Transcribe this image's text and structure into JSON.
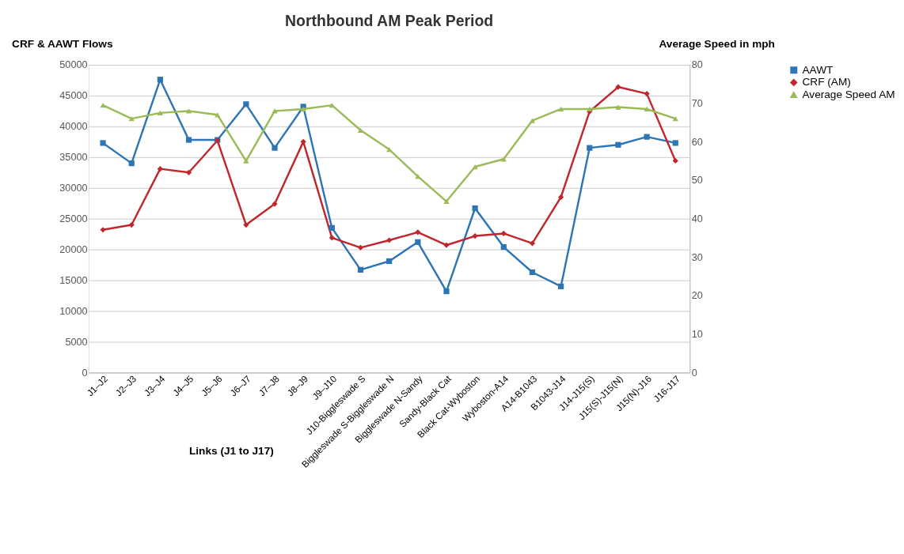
{
  "chart_data": {
    "type": "line",
    "title": "Northbound AM Peak Period",
    "xlabel": "Links (J1 to J17)",
    "ylabel": "CRF & AAWT Flows",
    "y2label": "Average Speed in mph",
    "categories": [
      "J1–J2",
      "J2–J3",
      "J3–J4",
      "J4–J5",
      "J5–J6",
      "J6–J7",
      "J7–J8",
      "J8–J9",
      "J9–J10",
      "J10-Biggleswade S",
      "Biggleswade S-Biggleswade N",
      "Biggleswade N-Sandy",
      "Sandy-Black Cat",
      "Black Cat-Wyboston",
      "Wyboston-A14",
      "A14-B1043",
      "B1043-J14",
      "J14-J15(S)",
      "J15(S)-J15(N)",
      "J15(N)-J16",
      "J16-J17"
    ],
    "series": [
      {
        "name": "AAWT",
        "color": "#2e75b6",
        "marker": "square",
        "values": [
          37300,
          34000,
          47600,
          37800,
          37800,
          43600,
          36500,
          43200,
          23500,
          16700,
          18100,
          21200,
          13200,
          26700,
          20400,
          16300,
          14000,
          36500,
          37000,
          38300,
          37300
        ]
      },
      {
        "name": "CRF (AM)",
        "color": "#c0272d",
        "marker": "diamond",
        "values": [
          23200,
          24000,
          33100,
          32500,
          37700,
          24000,
          27400,
          37500,
          21900,
          20300,
          21500,
          22800,
          20700,
          22200,
          22600,
          21000,
          28500,
          42400,
          46400,
          45300,
          34400
        ]
      },
      {
        "name": "Average Speed AM",
        "color": "#9bbb59",
        "marker": "triangle",
        "axis": "y2",
        "values": [
          69.5,
          66,
          67.5,
          68,
          67,
          55,
          68,
          68.5,
          69.5,
          63,
          58,
          51,
          44.5,
          53.5,
          55.5,
          65.5,
          68.5,
          68.5,
          69,
          68.5,
          66
        ]
      }
    ],
    "ylim": [
      0,
      50000
    ],
    "yticks": [
      0,
      5000,
      10000,
      15000,
      20000,
      25000,
      30000,
      35000,
      40000,
      45000,
      50000
    ],
    "y2lim": [
      0,
      80
    ],
    "y2ticks": [
      0,
      10,
      20,
      30,
      40,
      50,
      60,
      70,
      80
    ],
    "grid": "y",
    "legend": "right",
    "line_style": "solid"
  }
}
